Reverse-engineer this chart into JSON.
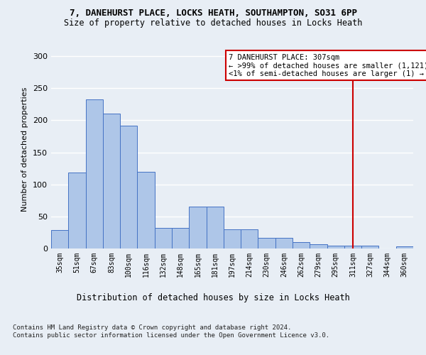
{
  "title_line1": "7, DANEHURST PLACE, LOCKS HEATH, SOUTHAMPTON, SO31 6PP",
  "title_line2": "Size of property relative to detached houses in Locks Heath",
  "xlabel": "Distribution of detached houses by size in Locks Heath",
  "ylabel": "Number of detached properties",
  "categories": [
    "35sqm",
    "51sqm",
    "67sqm",
    "83sqm",
    "100sqm",
    "116sqm",
    "132sqm",
    "148sqm",
    "165sqm",
    "181sqm",
    "197sqm",
    "214sqm",
    "230sqm",
    "246sqm",
    "262sqm",
    "279sqm",
    "295sqm",
    "311sqm",
    "327sqm",
    "344sqm",
    "360sqm"
  ],
  "values": [
    29,
    119,
    233,
    210,
    192,
    120,
    32,
    32,
    65,
    65,
    30,
    30,
    17,
    17,
    10,
    7,
    4,
    4,
    4,
    0,
    3
  ],
  "bar_color": "#aec6e8",
  "bar_edge_color": "#4472c4",
  "vline_x_index": 17,
  "vline_color": "#cc0000",
  "annotation_text": "7 DANEHURST PLACE: 307sqm\n← >99% of detached houses are smaller (1,121)\n<1% of semi-detached houses are larger (1) →",
  "annotation_box_color": "#ffffff",
  "annotation_box_edge": "#cc0000",
  "footer_text": "Contains HM Land Registry data © Crown copyright and database right 2024.\nContains public sector information licensed under the Open Government Licence v3.0.",
  "ylim": [
    0,
    310
  ],
  "yticks": [
    0,
    50,
    100,
    150,
    200,
    250,
    300
  ],
  "background_color": "#e8eef5",
  "grid_color": "#ffffff",
  "title1_fontsize": 9,
  "title2_fontsize": 8.5,
  "ylabel_fontsize": 8,
  "xlabel_fontsize": 8.5,
  "tick_fontsize": 7,
  "footer_fontsize": 6.5
}
